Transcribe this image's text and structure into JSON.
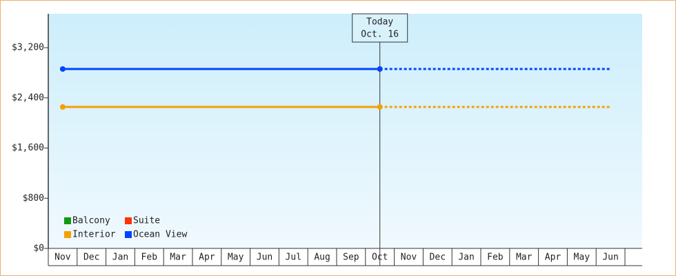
{
  "chart_data": {
    "type": "line",
    "categories": [
      "Nov",
      "Dec",
      "Jan",
      "Feb",
      "Mar",
      "Apr",
      "May",
      "Jun",
      "Jul",
      "Aug",
      "Sep",
      "Oct",
      "Nov",
      "Dec",
      "Jan",
      "Feb",
      "Mar",
      "Apr",
      "May",
      "Jun"
    ],
    "series": [
      {
        "name": "Balcony",
        "color": "#119911",
        "values": [
          null,
          null,
          null,
          null,
          null,
          null,
          null,
          null,
          null,
          null,
          null,
          null,
          null,
          null,
          null,
          null,
          null,
          null,
          null,
          null
        ]
      },
      {
        "name": "Suite",
        "color": "#ff3300",
        "values": [
          null,
          null,
          null,
          null,
          null,
          null,
          null,
          null,
          null,
          null,
          null,
          null,
          null,
          null,
          null,
          null,
          null,
          null,
          null,
          null
        ]
      },
      {
        "name": "Interior",
        "color": "#f5a000",
        "values": [
          2255,
          2255,
          2255,
          2255,
          2255,
          2255,
          2255,
          2255,
          2255,
          2255,
          2255,
          2255,
          2255,
          2255,
          2255,
          2255,
          2255,
          2255,
          2255,
          2255
        ]
      },
      {
        "name": "Ocean View",
        "color": "#0044ff",
        "values": [
          2860,
          2860,
          2860,
          2860,
          2860,
          2860,
          2860,
          2860,
          2860,
          2860,
          2860,
          2860,
          2860,
          2860,
          2860,
          2860,
          2860,
          2860,
          2860,
          2860
        ]
      }
    ],
    "today": {
      "title": "Today",
      "date": "Oct. 16",
      "category": 11
    },
    "ylim": [
      0,
      3740
    ],
    "yticks": [
      {
        "value": 0,
        "label": "$0"
      },
      {
        "value": 800,
        "label": "$800"
      },
      {
        "value": 1600,
        "label": "$1,600"
      },
      {
        "value": 2400,
        "label": "$2,400"
      },
      {
        "value": 3200,
        "label": "$3,200"
      }
    ]
  }
}
